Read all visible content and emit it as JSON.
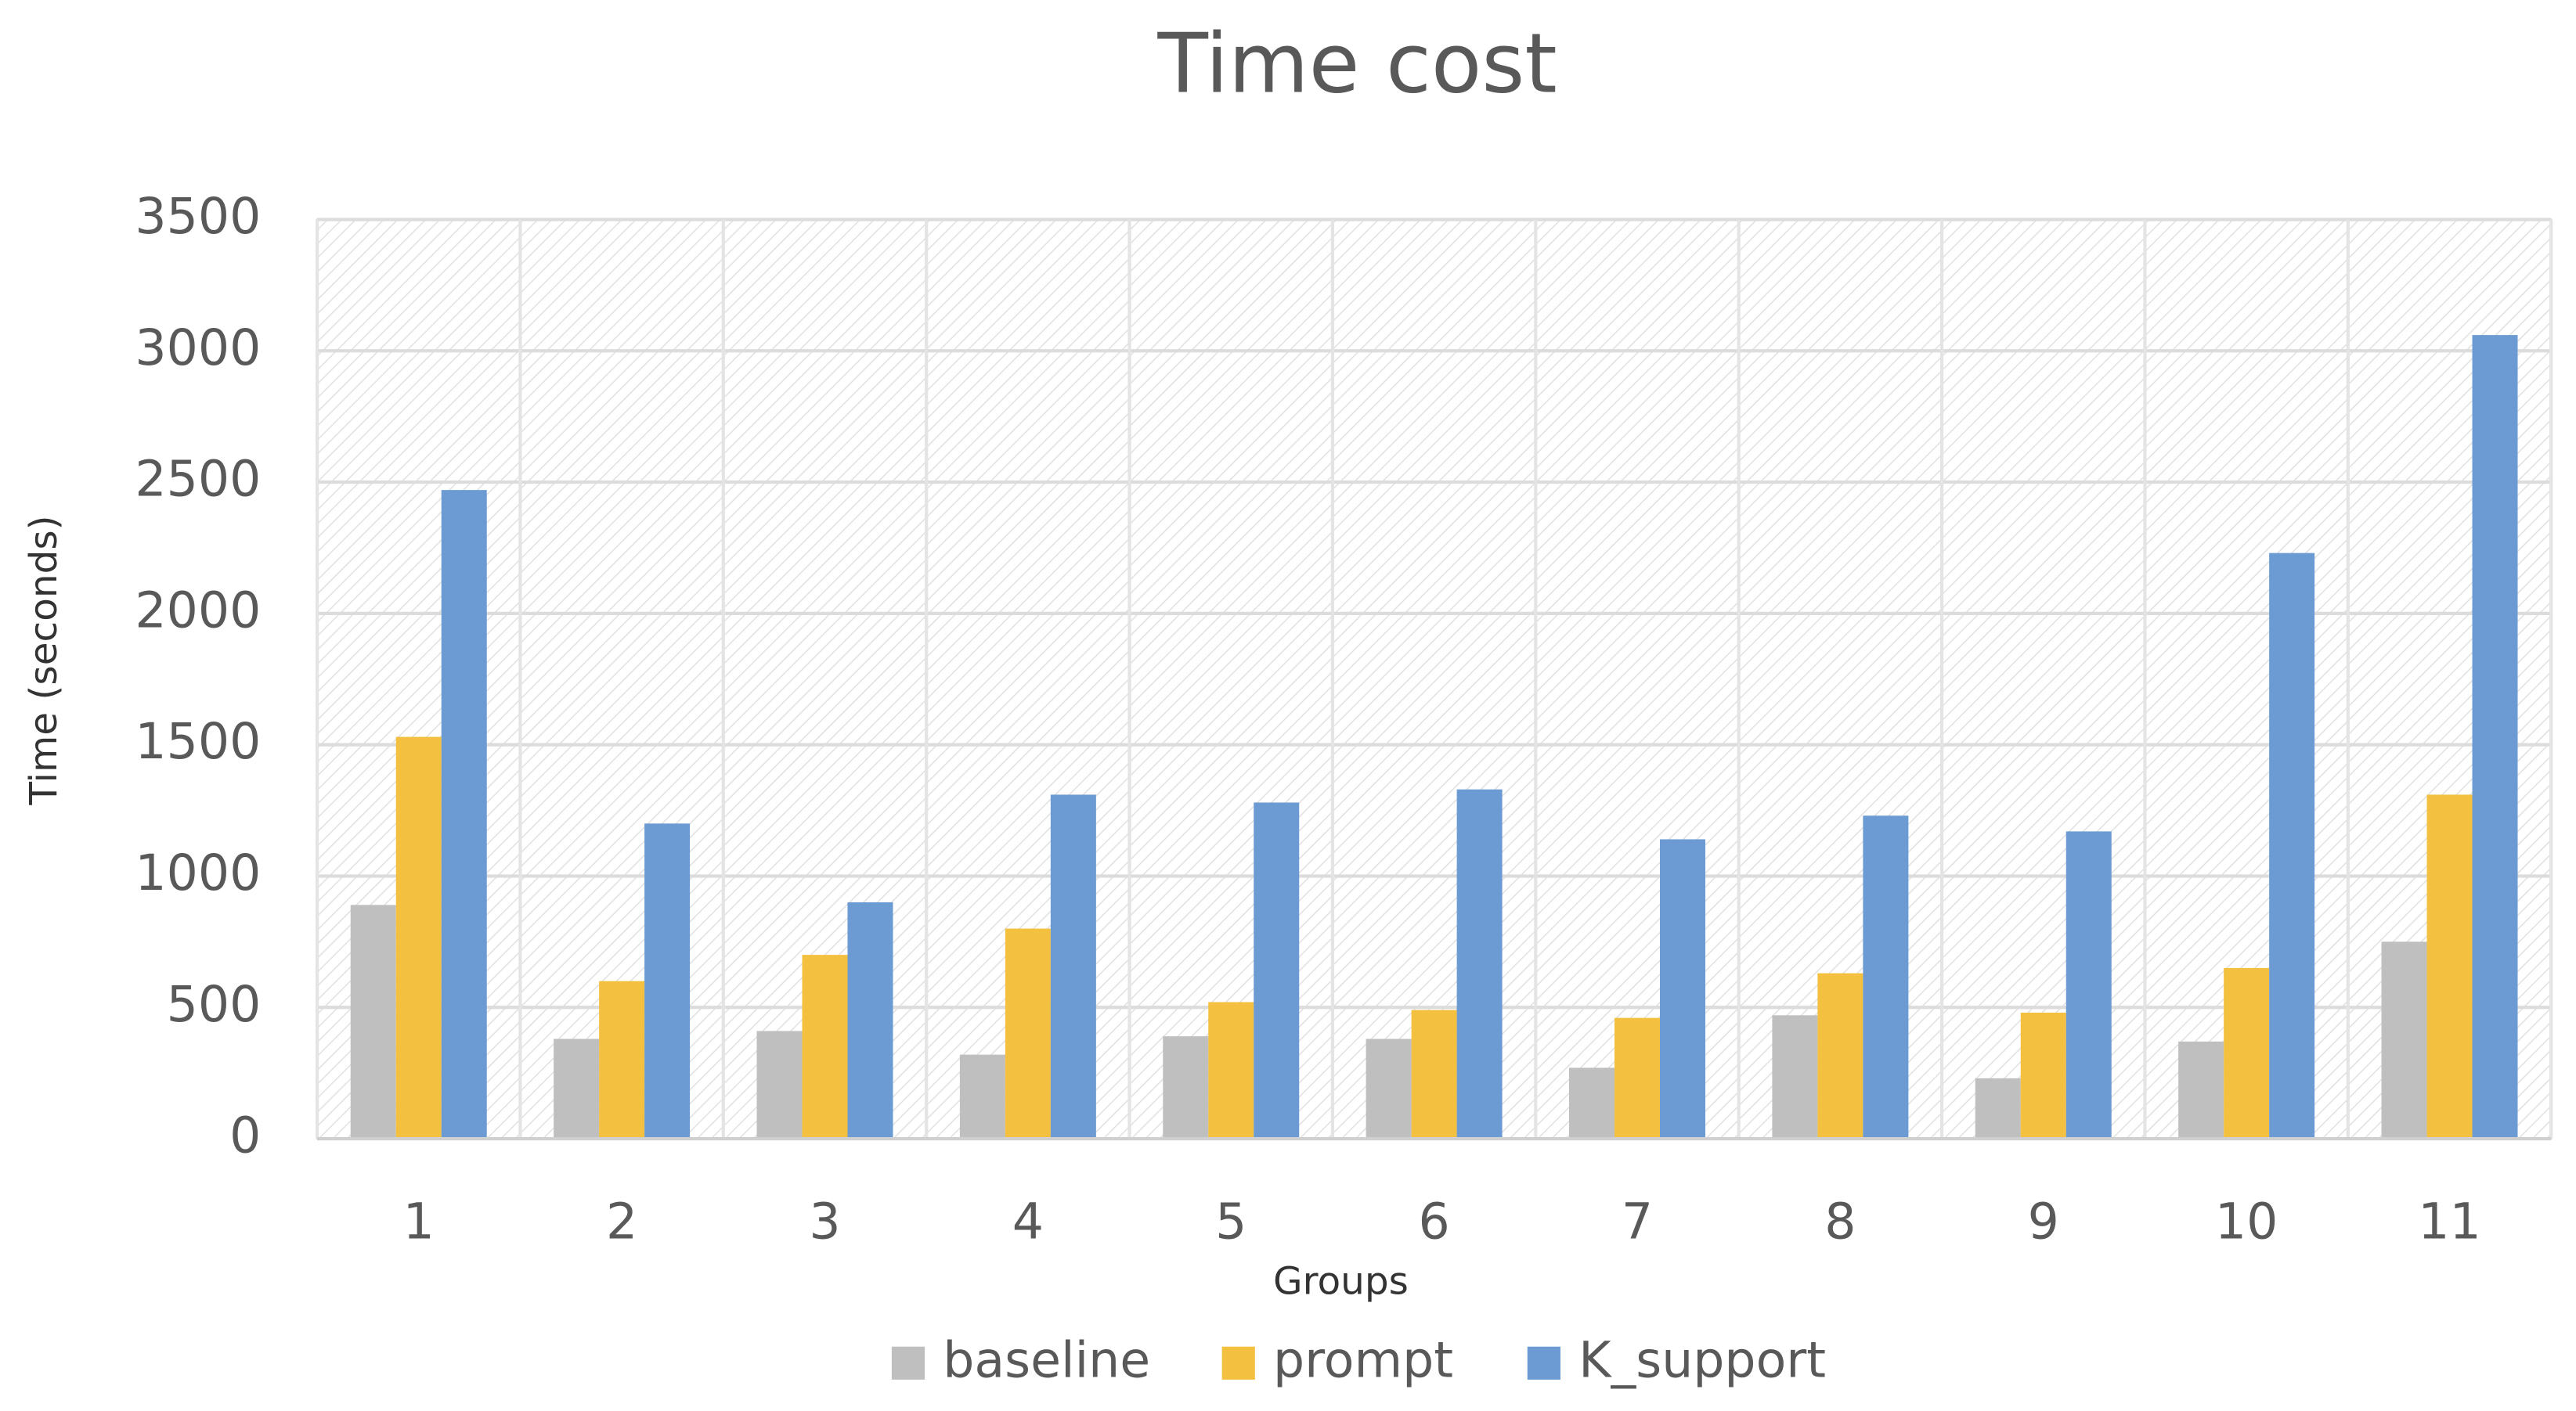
{
  "chart_data": {
    "type": "bar",
    "title": "Time cost",
    "x_label": "Groups",
    "y_label": "Time (seconds)",
    "categories": [
      "1",
      "2",
      "3",
      "4",
      "5",
      "6",
      "7",
      "8",
      "9",
      "10",
      "11"
    ],
    "series": [
      {
        "name": "baseline",
        "color": "#bfbfbf",
        "values": [
          890,
          380,
          410,
          320,
          390,
          380,
          270,
          470,
          230,
          370,
          750
        ]
      },
      {
        "name": "prompt",
        "color": "#f4c03f",
        "values": [
          1530,
          600,
          700,
          800,
          520,
          490,
          460,
          630,
          480,
          650,
          1310
        ]
      },
      {
        "name": "K_support",
        "color": "#6b9bd2",
        "values": [
          2470,
          1200,
          900,
          1310,
          1280,
          1330,
          1140,
          1230,
          1170,
          2230,
          3060
        ]
      }
    ],
    "ylim": [
      0,
      3500
    ],
    "yticks": [
      0,
      500,
      1000,
      1500,
      2000,
      2500,
      3000,
      3500
    ],
    "grid": true,
    "legend": "bottom"
  }
}
